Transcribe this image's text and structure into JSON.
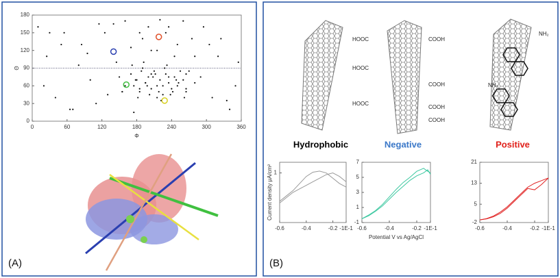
{
  "panel_a": {
    "label": "(A)"
  },
  "panel_b": {
    "label": "(B)",
    "tubes": [
      {
        "name": "Hydrophobic",
        "color": "#000000"
      },
      {
        "name": "Negative",
        "color": "#3b78c8",
        "groups": [
          "HOOC",
          "HOOC",
          "HOOC",
          "COOH",
          "COOH",
          "COOH",
          "COOH"
        ]
      },
      {
        "name": "Positive",
        "color": "#e0201a",
        "groups": [
          "NH₂",
          "NH₂"
        ]
      }
    ]
  },
  "chart_data": [
    {
      "type": "scatter",
      "xlabel": "Φ",
      "ylabel": "Θ",
      "color": "#111111",
      "xlim": [
        0,
        360
      ],
      "xticks": [
        0,
        60,
        120,
        180,
        240,
        300,
        360
      ],
      "ylim": [
        0,
        180
      ],
      "yticks": [
        0,
        30,
        60,
        90,
        120,
        150,
        180
      ],
      "hline": 90,
      "x": [
        10,
        25,
        40,
        55,
        70,
        85,
        100,
        115,
        130,
        145,
        160,
        175,
        190,
        205,
        220,
        235,
        250,
        265,
        280,
        295,
        310,
        325,
        340,
        355,
        20,
        50,
        80,
        110,
        140,
        170,
        200,
        230,
        260,
        290,
        320,
        350,
        30,
        65,
        95,
        125,
        155,
        185,
        215,
        245,
        275,
        305,
        335,
        170,
        175,
        180,
        185,
        190,
        195,
        200,
        205,
        210,
        215,
        220,
        225,
        230,
        235,
        240,
        245,
        250,
        255,
        260,
        265,
        172,
        182,
        192,
        202,
        212,
        222,
        232,
        242,
        252,
        262,
        178,
        188,
        198,
        208,
        218,
        228,
        238,
        248,
        185,
        195,
        205,
        215,
        225,
        235,
        150,
        160,
        270,
        280,
        155,
        265
      ],
      "values": [
        160,
        110,
        40,
        150,
        20,
        130,
        70,
        165,
        45,
        100,
        170,
        15,
        140,
        120,
        172,
        160,
        130,
        55,
        110,
        160,
        40,
        140,
        20,
        100,
        60,
        130,
        95,
        30,
        165,
        125,
        160,
        150,
        170,
        75,
        110,
        60,
        150,
        20,
        115,
        150,
        50,
        150,
        120,
        110,
        140,
        130,
        35,
        80,
        60,
        70,
        50,
        90,
        65,
        75,
        55,
        85,
        60,
        70,
        45,
        80,
        65,
        55,
        75,
        60,
        85,
        70,
        50,
        95,
        40,
        100,
        45,
        80,
        35,
        95,
        50,
        65,
        40,
        70,
        85,
        60,
        75,
        50,
        90,
        45,
        70,
        55,
        65,
        80,
        40,
        60,
        75,
        75,
        60,
        85,
        65,
        50,
        80
      ],
      "highlights": [
        {
          "x": 140,
          "y": 118,
          "color": "#2a3fb0"
        },
        {
          "x": 218,
          "y": 143,
          "color": "#e0502a"
        },
        {
          "x": 162,
          "y": 62,
          "color": "#40c040"
        },
        {
          "x": 228,
          "y": 35,
          "color": "#d8d020"
        }
      ]
    },
    {
      "type": "line",
      "ylabel": "Current density μA/cm²",
      "xlim": [
        -0.6,
        -0.1
      ],
      "xticks": [
        -0.6,
        -0.4,
        -0.2,
        {
          "value": -0.1,
          "label": "-1E-1"
        }
      ],
      "ylim": [
        -0.4,
        1.3
      ],
      "yticks": [
        1
      ],
      "series": [
        {
          "color": "#999999",
          "x": [
            -0.6,
            -0.55,
            -0.5,
            -0.45,
            -0.4,
            -0.35,
            -0.3,
            -0.25,
            -0.2,
            -0.15,
            -0.1
          ],
          "values": [
            0.2,
            0.35,
            0.5,
            0.7,
            0.9,
            1.02,
            1.05,
            1.0,
            0.85,
            0.7,
            0.6
          ]
        },
        {
          "color": "#999999",
          "x": [
            -0.6,
            -0.55,
            -0.5,
            -0.45,
            -0.4,
            -0.35,
            -0.3,
            -0.25,
            -0.2,
            -0.15,
            -0.1
          ],
          "values": [
            0.15,
            0.3,
            0.45,
            0.55,
            0.65,
            0.75,
            0.85,
            0.95,
            1.0,
            0.9,
            0.75
          ]
        }
      ]
    },
    {
      "type": "line",
      "xlabel": "Potential V vs Ag/AgCl",
      "xlim": [
        -0.6,
        -0.1
      ],
      "xticks": [
        -0.6,
        -0.4,
        -0.2,
        {
          "value": -0.1,
          "label": "-1E-1"
        }
      ],
      "ylim": [
        -1,
        7
      ],
      "yticks": [
        -1,
        1,
        3,
        5,
        7
      ],
      "series": [
        {
          "color": "#3cc8a0",
          "x": [
            -0.6,
            -0.55,
            -0.5,
            -0.45,
            -0.4,
            -0.35,
            -0.3,
            -0.25,
            -0.2,
            -0.15,
            -0.12,
            -0.1
          ],
          "values": [
            -0.5,
            0,
            0.6,
            1.4,
            2.4,
            3.4,
            4.3,
            5.0,
            5.8,
            6.2,
            5.8,
            5.6
          ]
        },
        {
          "color": "#3cc8a0",
          "x": [
            -0.6,
            -0.55,
            -0.5,
            -0.45,
            -0.4,
            -0.35,
            -0.3,
            -0.25,
            -0.2,
            -0.15,
            -0.12,
            -0.1
          ],
          "values": [
            -0.5,
            -0.1,
            0.5,
            1.2,
            2.1,
            3.0,
            3.8,
            4.6,
            5.2,
            5.6,
            6.0,
            5.4
          ]
        }
      ]
    },
    {
      "type": "line",
      "xlim": [
        -0.6,
        -0.1
      ],
      "xticks": [
        -0.6,
        -0.4,
        -0.2,
        {
          "value": -0.1,
          "label": "-1E-1"
        }
      ],
      "ylim": [
        -2,
        21
      ],
      "yticks": [
        -2,
        5,
        13,
        21
      ],
      "series": [
        {
          "color": "#e02020",
          "x": [
            -0.6,
            -0.55,
            -0.5,
            -0.45,
            -0.4,
            -0.35,
            -0.3,
            -0.25,
            -0.2,
            -0.15,
            -0.1
          ],
          "values": [
            -1,
            -0.5,
            0.5,
            2,
            4,
            6.5,
            9,
            11.5,
            13,
            14,
            15
          ]
        },
        {
          "color": "#e02020",
          "x": [
            -0.6,
            -0.55,
            -0.5,
            -0.45,
            -0.4,
            -0.35,
            -0.3,
            -0.25,
            -0.2,
            -0.15,
            -0.1
          ],
          "values": [
            -1,
            -0.6,
            0.2,
            1.5,
            3.5,
            6,
            8.5,
            11,
            10.5,
            12.5,
            15
          ]
        }
      ]
    }
  ]
}
